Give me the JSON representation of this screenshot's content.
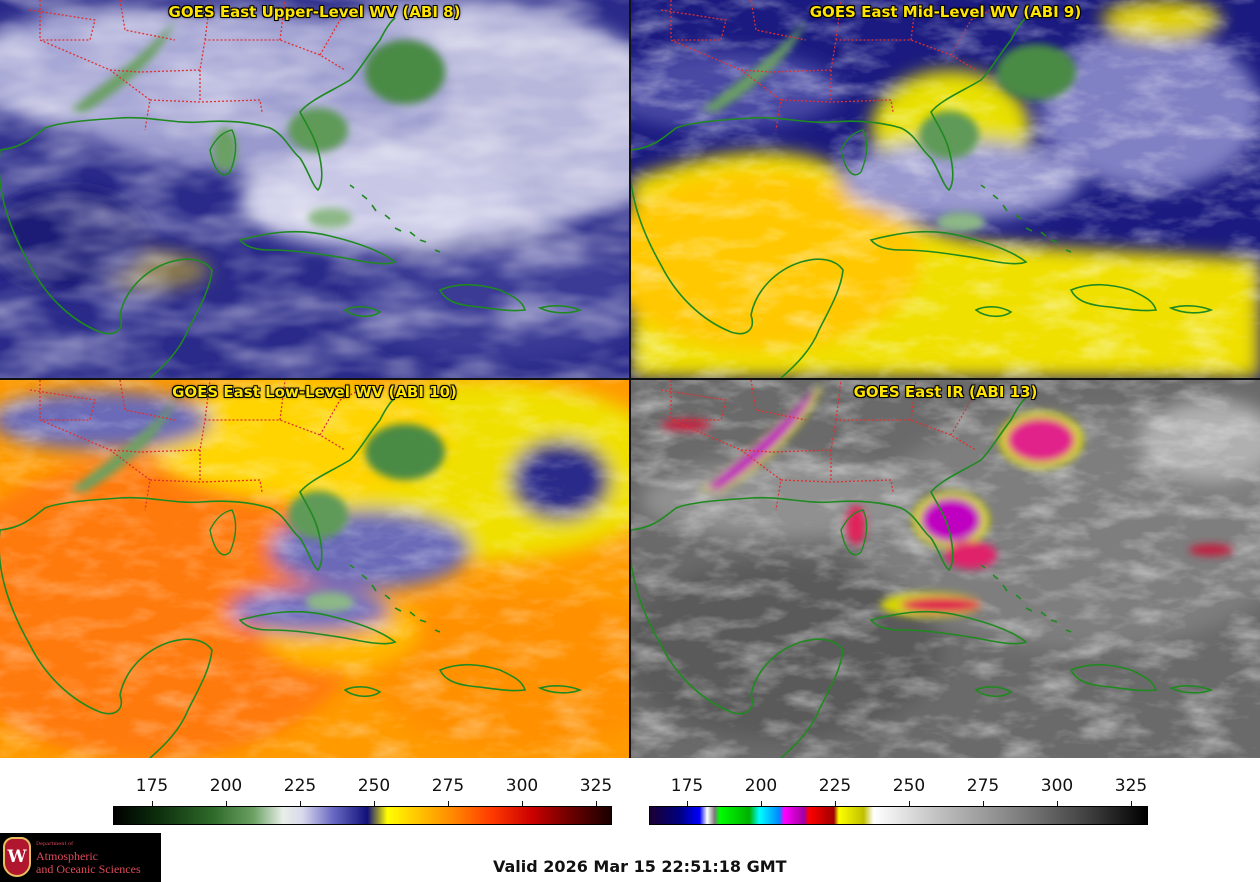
{
  "panels": {
    "upper": {
      "title": "GOES East Upper-Level WV (ABI 8)"
    },
    "mid": {
      "title": "GOES East Mid-Level WV (ABI 9)"
    },
    "low": {
      "title": "GOES East Low-Level WV (ABI 10)"
    },
    "ir": {
      "title": "GOES East IR (ABI 13)"
    }
  },
  "colorbars": {
    "wv": {
      "ticks": [
        "175",
        "200",
        "225",
        "250",
        "275",
        "300",
        "325"
      ]
    },
    "ir": {
      "ticks": [
        "175",
        "200",
        "225",
        "250",
        "275",
        "300",
        "325"
      ]
    }
  },
  "footer": {
    "valid": "Valid 2026 Mar 15 22:51:18 GMT"
  },
  "logo": {
    "dept": "Department of",
    "line1": "Atmospheric",
    "line2": "and Oceanic Sciences",
    "seal": "W"
  },
  "colors": {
    "title": "#ffe400",
    "coast": "#1f8a1f",
    "border": "#e03030"
  }
}
